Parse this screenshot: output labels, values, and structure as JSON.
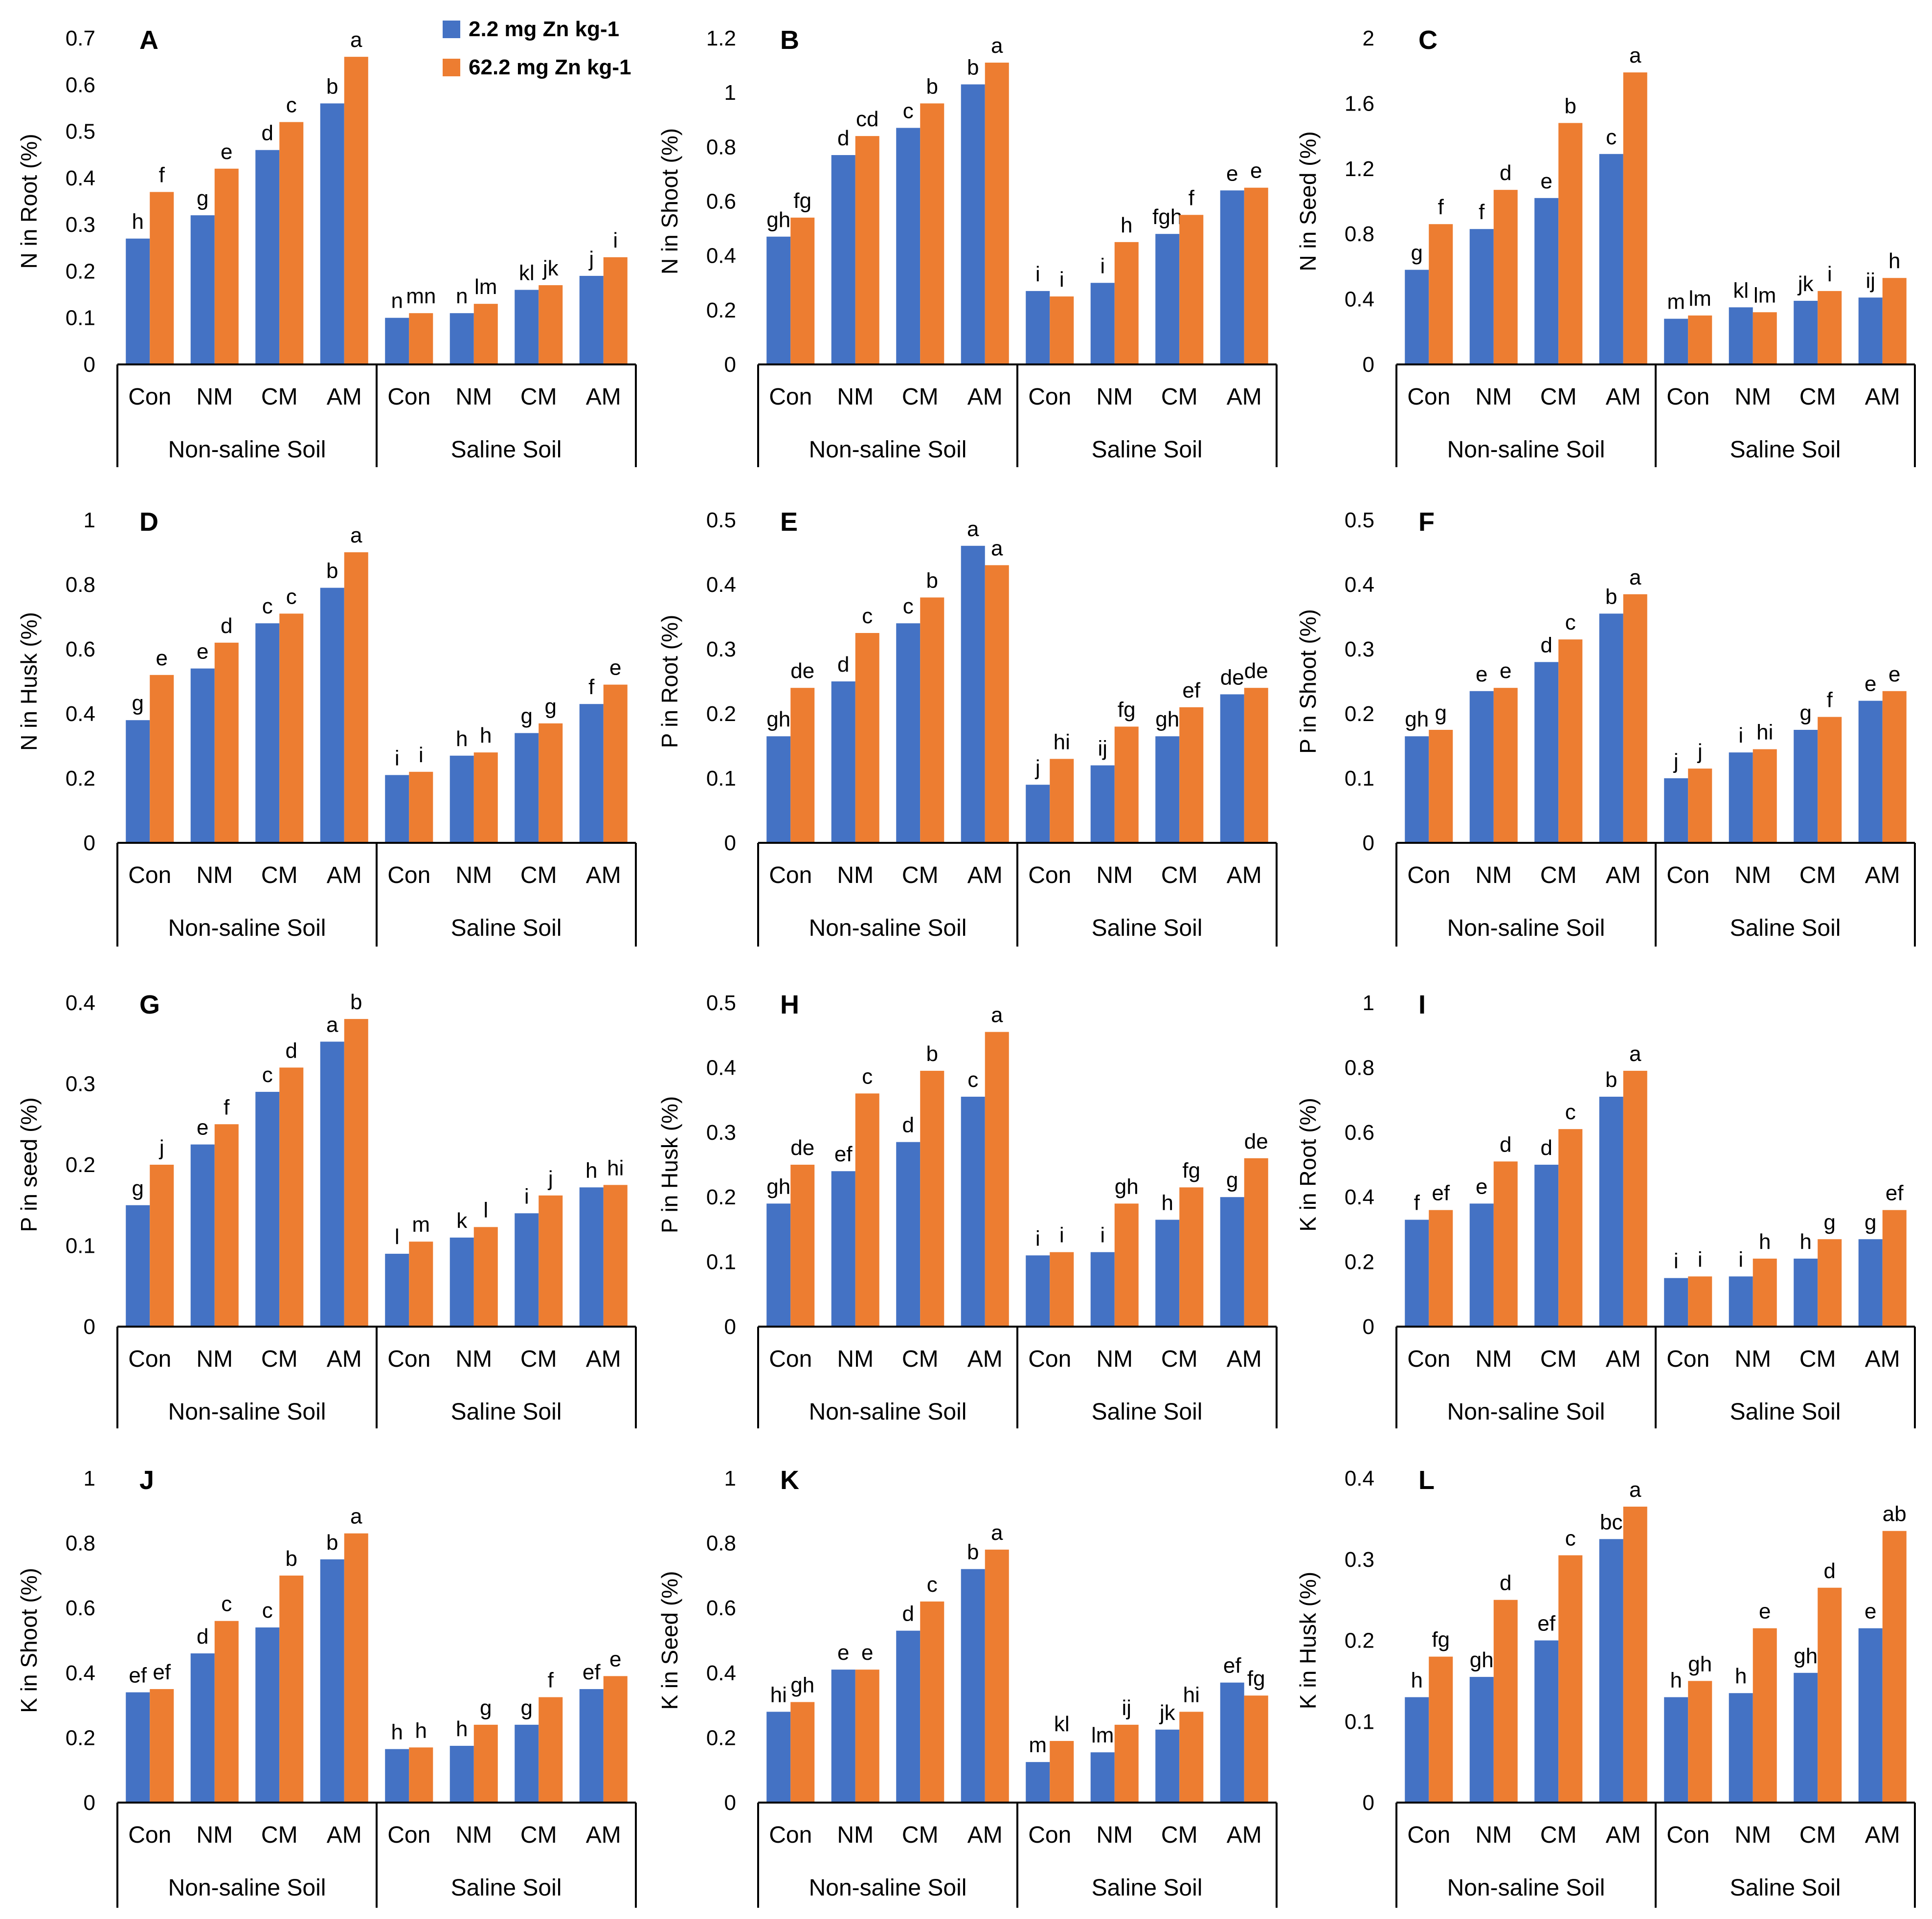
{
  "colors": {
    "low_zn": "#4472C4",
    "high_zn": "#ED7D31",
    "axis": "#000000",
    "text": "#000000"
  },
  "legend": {
    "items": [
      {
        "label": "2.2 mg Zn kg-1",
        "color": "#4472C4"
      },
      {
        "label": "62.2 mg Zn kg-1",
        "color": "#ED7D31"
      }
    ]
  },
  "chart_data": [
    {
      "panel": "A",
      "type": "bar",
      "ylabel": "N in Root (%)",
      "ylim": [
        0,
        0.7
      ],
      "yticks": [
        "0",
        "0.1",
        "0.2",
        "0.3",
        "0.4",
        "0.5",
        "0.6",
        "0.7"
      ],
      "categories": [
        "Con",
        "NM",
        "CM",
        "AM",
        "Con",
        "NM",
        "CM",
        "AM"
      ],
      "groups": [
        "Non-saline Soil",
        "Saline Soil"
      ],
      "series": [
        {
          "name": "2.2 mg Zn kg-1",
          "values": [
            0.27,
            0.32,
            0.46,
            0.56,
            0.1,
            0.11,
            0.16,
            0.19
          ],
          "letters": [
            "h",
            "g",
            "d",
            "b",
            "n",
            "n",
            "kl",
            "j"
          ]
        },
        {
          "name": "62.2 mg Zn kg-1",
          "values": [
            0.37,
            0.42,
            0.52,
            0.66,
            0.11,
            0.13,
            0.17,
            0.23
          ],
          "letters": [
            "f",
            "e",
            "c",
            "a",
            "mn",
            "lm",
            "jk",
            "i"
          ]
        }
      ]
    },
    {
      "panel": "B",
      "type": "bar",
      "ylabel": "N in Shoot (%)",
      "ylim": [
        0,
        1.2
      ],
      "yticks": [
        "0",
        "0.2",
        "0.4",
        "0.6",
        "0.8",
        "1",
        "1.2"
      ],
      "categories": [
        "Con",
        "NM",
        "CM",
        "AM",
        "Con",
        "NM",
        "CM",
        "AM"
      ],
      "groups": [
        "Non-saline Soil",
        "Saline Soil"
      ],
      "series": [
        {
          "name": "2.2 mg Zn kg-1",
          "values": [
            0.47,
            0.77,
            0.87,
            1.03,
            0.27,
            0.3,
            0.48,
            0.64
          ],
          "letters": [
            "gh",
            "d",
            "c",
            "b",
            "i",
            "i",
            "fgh",
            "e"
          ]
        },
        {
          "name": "62.2 mg Zn kg-1",
          "values": [
            0.54,
            0.84,
            0.96,
            1.11,
            0.25,
            0.45,
            0.55,
            0.65
          ],
          "letters": [
            "fg",
            "cd",
            "b",
            "a",
            "i",
            "h",
            "f",
            "e"
          ]
        }
      ]
    },
    {
      "panel": "C",
      "type": "bar",
      "ylabel": "N in Seed (%)",
      "ylim": [
        0,
        2
      ],
      "yticks": [
        "0",
        "0.4",
        "0.8",
        "1.2",
        "1.6",
        "2"
      ],
      "categories": [
        "Con",
        "NM",
        "CM",
        "AM",
        "Con",
        "NM",
        "CM",
        "AM"
      ],
      "groups": [
        "Non-saline Soil",
        "Saline Soil"
      ],
      "series": [
        {
          "name": "2.2 mg Zn kg-1",
          "values": [
            0.58,
            0.83,
            1.02,
            1.29,
            0.28,
            0.35,
            0.39,
            0.41
          ],
          "letters": [
            "g",
            "f",
            "e",
            "c",
            "m",
            "kl",
            "jk",
            "ij"
          ]
        },
        {
          "name": "62.2 mg Zn kg-1",
          "values": [
            0.86,
            1.07,
            1.48,
            1.79,
            0.3,
            0.32,
            0.45,
            0.53
          ],
          "letters": [
            "f",
            "d",
            "b",
            "a",
            "lm",
            "lm",
            "i",
            "h"
          ]
        }
      ]
    },
    {
      "panel": "D",
      "type": "bar",
      "ylabel": "N in Husk (%)",
      "ylim": [
        0,
        1
      ],
      "yticks": [
        "0",
        "0.2",
        "0.4",
        "0.6",
        "0.8",
        "1"
      ],
      "categories": [
        "Con",
        "NM",
        "CM",
        "AM",
        "Con",
        "NM",
        "CM",
        "AM"
      ],
      "groups": [
        "Non-saline Soil",
        "Saline Soil"
      ],
      "series": [
        {
          "name": "2.2 mg Zn kg-1",
          "values": [
            0.38,
            0.54,
            0.68,
            0.79,
            0.21,
            0.27,
            0.34,
            0.43
          ],
          "letters": [
            "g",
            "e",
            "c",
            "b",
            "i",
            "h",
            "g",
            "f"
          ]
        },
        {
          "name": "62.2 mg Zn kg-1",
          "values": [
            0.52,
            0.62,
            0.71,
            0.9,
            0.22,
            0.28,
            0.37,
            0.49
          ],
          "letters": [
            "e",
            "d",
            "c",
            "a",
            "i",
            "h",
            "g",
            "e"
          ]
        }
      ]
    },
    {
      "panel": "E",
      "type": "bar",
      "ylabel": "P in Root (%)",
      "ylim": [
        0,
        0.5
      ],
      "yticks": [
        "0",
        "0.1",
        "0.2",
        "0.3",
        "0.4",
        "0.5"
      ],
      "categories": [
        "Con",
        "NM",
        "CM",
        "AM",
        "Con",
        "NM",
        "CM",
        "AM"
      ],
      "groups": [
        "Non-saline Soil",
        "Saline Soil"
      ],
      "series": [
        {
          "name": "2.2 mg Zn kg-1",
          "values": [
            0.165,
            0.25,
            0.34,
            0.46,
            0.09,
            0.12,
            0.165,
            0.23
          ],
          "letters": [
            "gh",
            "d",
            "c",
            "a",
            "j",
            "ij",
            "gh",
            "de"
          ]
        },
        {
          "name": "62.2 mg Zn kg-1",
          "values": [
            0.24,
            0.325,
            0.38,
            0.43,
            0.13,
            0.18,
            0.21,
            0.24
          ],
          "letters": [
            "de",
            "c",
            "b",
            "a",
            "hi",
            "fg",
            "ef",
            "de"
          ]
        }
      ]
    },
    {
      "panel": "F",
      "type": "bar",
      "ylabel": "P in Shoot (%)",
      "ylim": [
        0,
        0.5
      ],
      "yticks": [
        "0",
        "0.1",
        "0.2",
        "0.3",
        "0.4",
        "0.5"
      ],
      "categories": [
        "Con",
        "NM",
        "CM",
        "AM",
        "Con",
        "NM",
        "CM",
        "AM"
      ],
      "groups": [
        "Non-saline Soil",
        "Saline Soil"
      ],
      "series": [
        {
          "name": "2.2 mg Zn kg-1",
          "values": [
            0.165,
            0.235,
            0.28,
            0.355,
            0.1,
            0.14,
            0.175,
            0.22
          ],
          "letters": [
            "gh",
            "e",
            "d",
            "b",
            "j",
            "i",
            "g",
            "e"
          ]
        },
        {
          "name": "62.2 mg Zn kg-1",
          "values": [
            0.175,
            0.24,
            0.315,
            0.385,
            0.115,
            0.145,
            0.195,
            0.235
          ],
          "letters": [
            "g",
            "e",
            "c",
            "a",
            "j",
            "hi",
            "f",
            "e"
          ]
        }
      ]
    },
    {
      "panel": "G",
      "type": "bar",
      "ylabel": "P in seed (%)",
      "ylim": [
        0,
        0.4
      ],
      "yticks": [
        "0",
        "0.1",
        "0.2",
        "0.3",
        "0.4"
      ],
      "categories": [
        "Con",
        "NM",
        "CM",
        "AM",
        "Con",
        "NM",
        "CM",
        "AM"
      ],
      "groups": [
        "Non-saline Soil",
        "Saline Soil"
      ],
      "series": [
        {
          "name": "2.2 mg Zn kg-1",
          "values": [
            0.15,
            0.225,
            0.29,
            0.352,
            0.09,
            0.11,
            0.14,
            0.172
          ],
          "letters": [
            "g",
            "e",
            "c",
            "a",
            "l",
            "k",
            "i",
            "h"
          ]
        },
        {
          "name": "62.2 mg Zn kg-1",
          "values": [
            0.2,
            0.25,
            0.32,
            0.38,
            0.105,
            0.123,
            0.162,
            0.175
          ],
          "letters": [
            "j",
            "f",
            "d",
            "b",
            "m",
            "l",
            "j",
            "hi"
          ]
        }
      ]
    },
    {
      "panel": "H",
      "type": "bar",
      "ylabel": "P in Husk (%)",
      "ylim": [
        0,
        0.5
      ],
      "yticks": [
        "0",
        "0.1",
        "0.2",
        "0.3",
        "0.4",
        "0.5"
      ],
      "categories": [
        "Con",
        "NM",
        "CM",
        "AM",
        "Con",
        "NM",
        "CM",
        "AM"
      ],
      "groups": [
        "Non-saline Soil",
        "Saline Soil"
      ],
      "series": [
        {
          "name": "2.2 mg Zn kg-1",
          "values": [
            0.19,
            0.24,
            0.285,
            0.355,
            0.11,
            0.115,
            0.165,
            0.2
          ],
          "letters": [
            "gh",
            "ef",
            "d",
            "c",
            "i",
            "i",
            "h",
            "g"
          ]
        },
        {
          "name": "62.2 mg Zn kg-1",
          "values": [
            0.25,
            0.36,
            0.395,
            0.455,
            0.115,
            0.19,
            0.215,
            0.26
          ],
          "letters": [
            "de",
            "c",
            "b",
            "a",
            "i",
            "gh",
            "fg",
            "de"
          ]
        }
      ]
    },
    {
      "panel": "I",
      "type": "bar",
      "ylabel": "K in Root (%)",
      "ylim": [
        0,
        1
      ],
      "yticks": [
        "0",
        "0.2",
        "0.4",
        "0.6",
        "0.8",
        "1"
      ],
      "categories": [
        "Con",
        "NM",
        "CM",
        "AM",
        "Con",
        "NM",
        "CM",
        "AM"
      ],
      "groups": [
        "Non-saline Soil",
        "Saline Soil"
      ],
      "series": [
        {
          "name": "2.2 mg Zn kg-1",
          "values": [
            0.33,
            0.38,
            0.5,
            0.71,
            0.15,
            0.155,
            0.21,
            0.27
          ],
          "letters": [
            "f",
            "e",
            "d",
            "b",
            "i",
            "i",
            "h",
            "g"
          ]
        },
        {
          "name": "62.2 mg Zn kg-1",
          "values": [
            0.36,
            0.51,
            0.61,
            0.79,
            0.155,
            0.21,
            0.27,
            0.36
          ],
          "letters": [
            "ef",
            "d",
            "c",
            "a",
            "i",
            "h",
            "g",
            "ef"
          ]
        }
      ]
    },
    {
      "panel": "J",
      "type": "bar",
      "ylabel": "K in Shoot (%)",
      "ylim": [
        0,
        1
      ],
      "yticks": [
        "0",
        "0.2",
        "0.4",
        "0.6",
        "0.8",
        "1"
      ],
      "categories": [
        "Con",
        "NM",
        "CM",
        "AM",
        "Con",
        "NM",
        "CM",
        "AM"
      ],
      "groups": [
        "Non-saline Soil",
        "Saline Soil"
      ],
      "series": [
        {
          "name": "2.2 mg Zn kg-1",
          "values": [
            0.34,
            0.46,
            0.54,
            0.75,
            0.165,
            0.175,
            0.24,
            0.35
          ],
          "letters": [
            "ef",
            "d",
            "c",
            "b",
            "h",
            "h",
            "g",
            "ef"
          ]
        },
        {
          "name": "62.2 mg Zn kg-1",
          "values": [
            0.35,
            0.56,
            0.7,
            0.83,
            0.17,
            0.24,
            0.325,
            0.39
          ],
          "letters": [
            "ef",
            "c",
            "b",
            "a",
            "h",
            "g",
            "f",
            "e"
          ]
        }
      ]
    },
    {
      "panel": "K",
      "type": "bar",
      "ylabel": "K in Seed (%)",
      "ylim": [
        0,
        1
      ],
      "yticks": [
        "0",
        "0.2",
        "0.4",
        "0.6",
        "0.8",
        "1"
      ],
      "categories": [
        "Con",
        "NM",
        "CM",
        "AM",
        "Con",
        "NM",
        "CM",
        "AM"
      ],
      "groups": [
        "Non-saline Soil",
        "Saline Soil"
      ],
      "series": [
        {
          "name": "2.2 mg Zn kg-1",
          "values": [
            0.28,
            0.41,
            0.53,
            0.72,
            0.125,
            0.155,
            0.225,
            0.37
          ],
          "letters": [
            "hi",
            "e",
            "d",
            "b",
            "m",
            "lm",
            "jk",
            "ef"
          ]
        },
        {
          "name": "62.2 mg Zn kg-1",
          "values": [
            0.31,
            0.41,
            0.62,
            0.78,
            0.19,
            0.24,
            0.28,
            0.33
          ],
          "letters": [
            "gh",
            "e",
            "c",
            "a",
            "kl",
            "ij",
            "hi",
            "fg"
          ]
        }
      ]
    },
    {
      "panel": "L",
      "type": "bar",
      "ylabel": "K in Husk (%)",
      "ylim": [
        0,
        0.4
      ],
      "yticks": [
        "0",
        "0.1",
        "0.2",
        "0.3",
        "0.4"
      ],
      "categories": [
        "Con",
        "NM",
        "CM",
        "AM",
        "Con",
        "NM",
        "CM",
        "AM"
      ],
      "groups": [
        "Non-saline Soil",
        "Saline Soil"
      ],
      "series": [
        {
          "name": "2.2 mg Zn kg-1",
          "values": [
            0.13,
            0.155,
            0.2,
            0.325,
            0.13,
            0.135,
            0.16,
            0.215
          ],
          "letters": [
            "h",
            "gh",
            "ef",
            "bc",
            "h",
            "h",
            "gh",
            "e"
          ]
        },
        {
          "name": "62.2 mg Zn kg-1",
          "values": [
            0.18,
            0.25,
            0.305,
            0.365,
            0.15,
            0.215,
            0.265,
            0.335
          ],
          "letters": [
            "fg",
            "d",
            "c",
            "a",
            "gh",
            "e",
            "d",
            "ab"
          ]
        }
      ]
    }
  ]
}
